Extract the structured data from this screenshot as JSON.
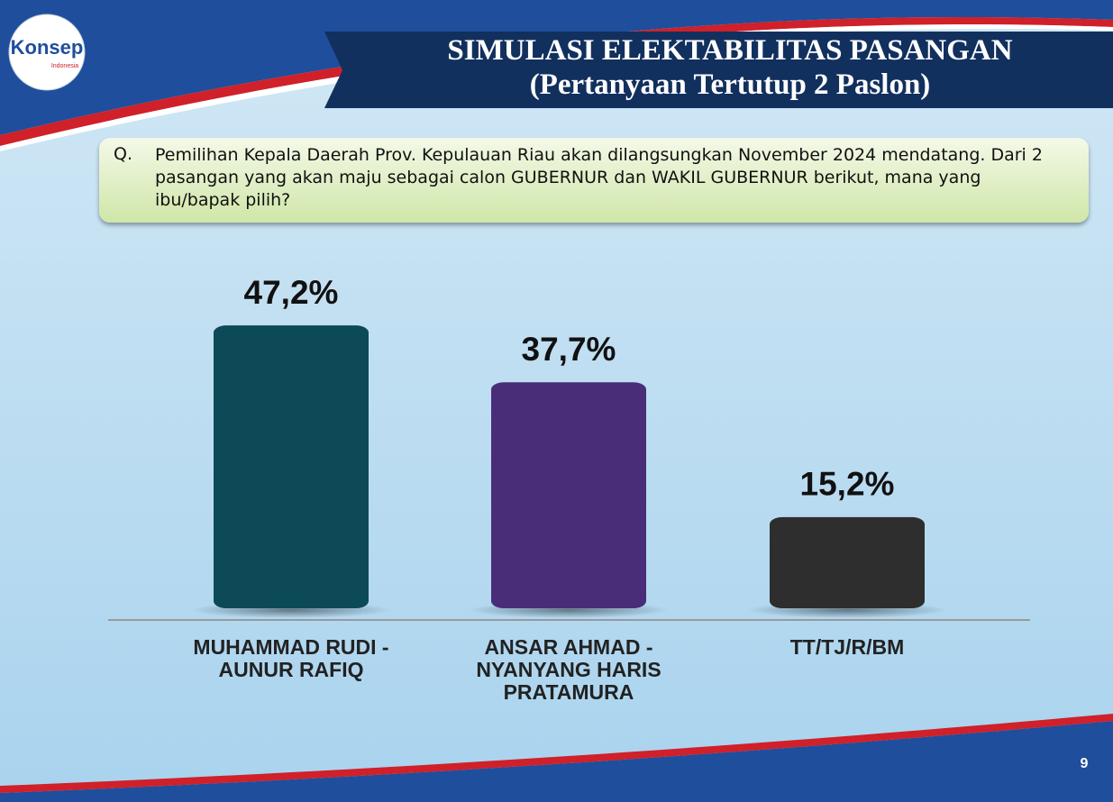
{
  "logo": {
    "name": "Konsep",
    "tagline": "Indonesia"
  },
  "page_number": "9",
  "question": {
    "label": "Q.",
    "text": "Pemilihan Kepala Daerah Prov. Kepulauan Riau akan dilangsungkan November 2024 mendatang. Dari 2 pasangan yang akan maju sebagai calon GUBERNUR dan WAKIL GUBERNUR berikut, mana yang ibu/bapak pilih?"
  },
  "chart_data": {
    "type": "bar",
    "title": "SIMULASI ELEKTABILITAS PASANGAN",
    "subtitle": "(Pertanyaan Tertutup 2 Paslon)",
    "categories": [
      "MUHAMMAD RUDI - AUNUR RAFIQ",
      "ANSAR AHMAD - NYANYANG HARIS PRATAMURA",
      "TT/TJ/R/BM"
    ],
    "values": [
      47.2,
      37.7,
      15.2
    ],
    "value_labels": [
      "47,2%",
      "37,7%",
      "15,2%"
    ],
    "colors": [
      "#0d4a57",
      "#4a2d78",
      "#2e2e2e"
    ]
  }
}
